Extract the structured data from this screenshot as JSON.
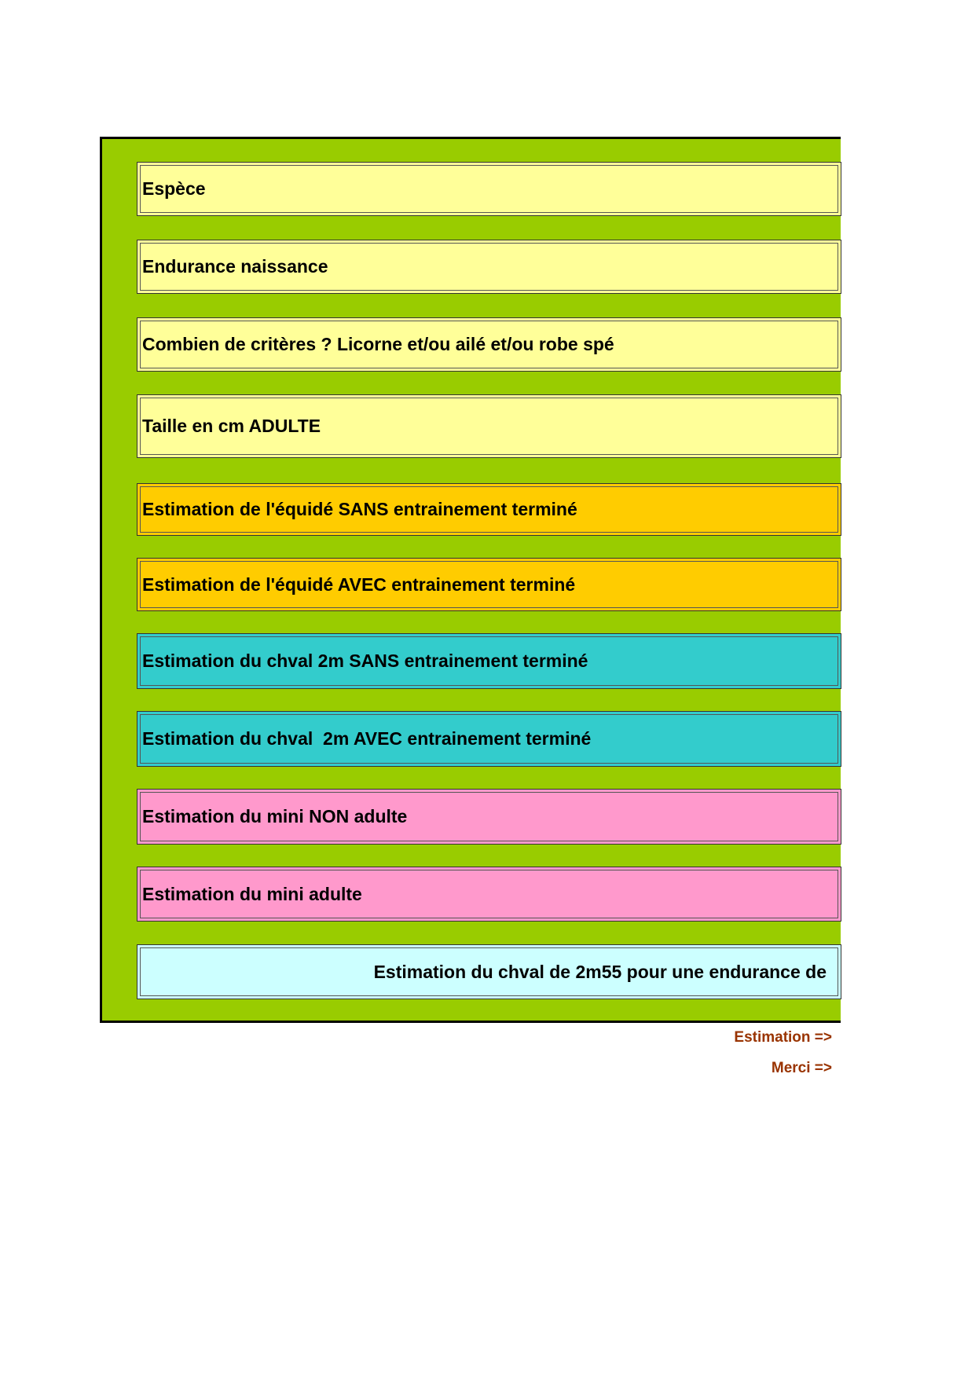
{
  "form": {
    "rows": [
      "Espèce",
      "Endurance naissance",
      "Combien de critères ? Licorne et/ou ailé et/ou robe spé",
      "Taille en cm ADULTE",
      "Estimation de l'équidé SANS entrainement terminé",
      "Estimation de l'équidé AVEC entrainement terminé",
      "Estimation du chval 2m SANS entrainement terminé",
      "Estimation du chval  2m AVEC entrainement terminé",
      "Estimation du mini NON adulte",
      "Estimation du mini adulte",
      "Estimation du chval de 2m55 pour une endurance de"
    ],
    "links": [
      "Estimation =>",
      "Merci =>"
    ]
  }
}
